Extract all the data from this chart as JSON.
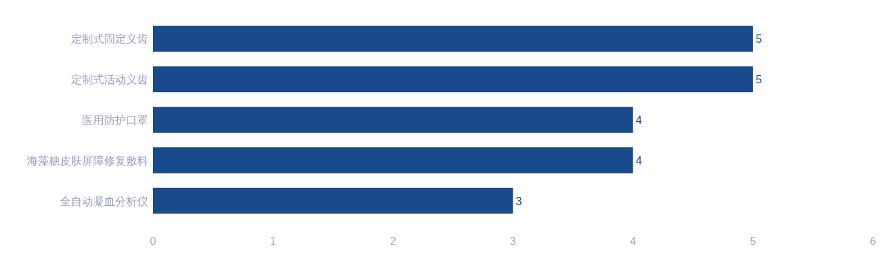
{
  "chart_data": {
    "type": "bar",
    "orientation": "horizontal",
    "categories": [
      "定制式固定义齿",
      "定制式活动义齿",
      "医用防护口罩",
      "海藻糖皮肤屏障修复敷料",
      "全自动凝血分析仪"
    ],
    "values": [
      5,
      5,
      4,
      4,
      3
    ],
    "color": "#184a8c",
    "xlim": [
      0,
      6
    ],
    "xticks": [
      0,
      1,
      2,
      3,
      4,
      5,
      6
    ],
    "data_labels": true
  }
}
